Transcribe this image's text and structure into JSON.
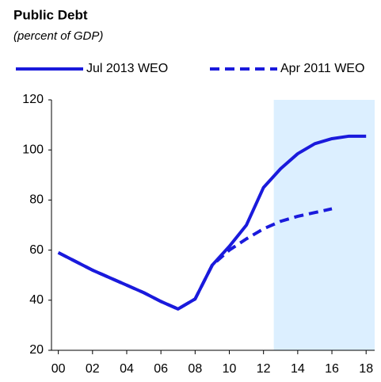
{
  "chart_data": {
    "type": "line",
    "title": "Public Debt",
    "subtitle": "(percent of GDP)",
    "x": [
      0,
      1,
      2,
      3,
      4,
      5,
      6,
      7,
      8,
      9,
      10,
      11,
      12,
      13,
      14,
      15,
      16,
      17,
      18
    ],
    "xlim": [
      -0.4,
      18.5
    ],
    "xticks": [
      {
        "value": 0,
        "label": "00"
      },
      {
        "value": 2,
        "label": "02"
      },
      {
        "value": 4,
        "label": "04"
      },
      {
        "value": 6,
        "label": "06"
      },
      {
        "value": 8,
        "label": "08"
      },
      {
        "value": 10,
        "label": "10"
      },
      {
        "value": 12,
        "label": "12"
      },
      {
        "value": 14,
        "label": "14"
      },
      {
        "value": 16,
        "label": "16"
      },
      {
        "value": 18,
        "label": "18"
      }
    ],
    "ylim": [
      20,
      120
    ],
    "yticks": [
      20,
      40,
      60,
      80,
      100,
      120
    ],
    "shade": [
      12.6,
      18.5
    ],
    "shade_color": "#dcefff",
    "series": [
      {
        "name": "Jul 2013 WEO",
        "color": "#1a1adc",
        "dash": false,
        "values": [
          59,
          55.5,
          52,
          49,
          46,
          43,
          39.5,
          36.5,
          40.5,
          54,
          61.5,
          70,
          85,
          92.5,
          98.5,
          102.5,
          104.5,
          105.5,
          105.5
        ]
      },
      {
        "name": "Apr 2011 WEO",
        "color": "#1a1adc",
        "dash": true,
        "values": [
          59,
          55.5,
          52,
          49,
          46,
          43,
          39.5,
          36.5,
          40.5,
          54,
          60,
          64.5,
          68.5,
          71.5,
          73.5,
          75,
          76.5,
          null,
          null
        ]
      }
    ]
  }
}
